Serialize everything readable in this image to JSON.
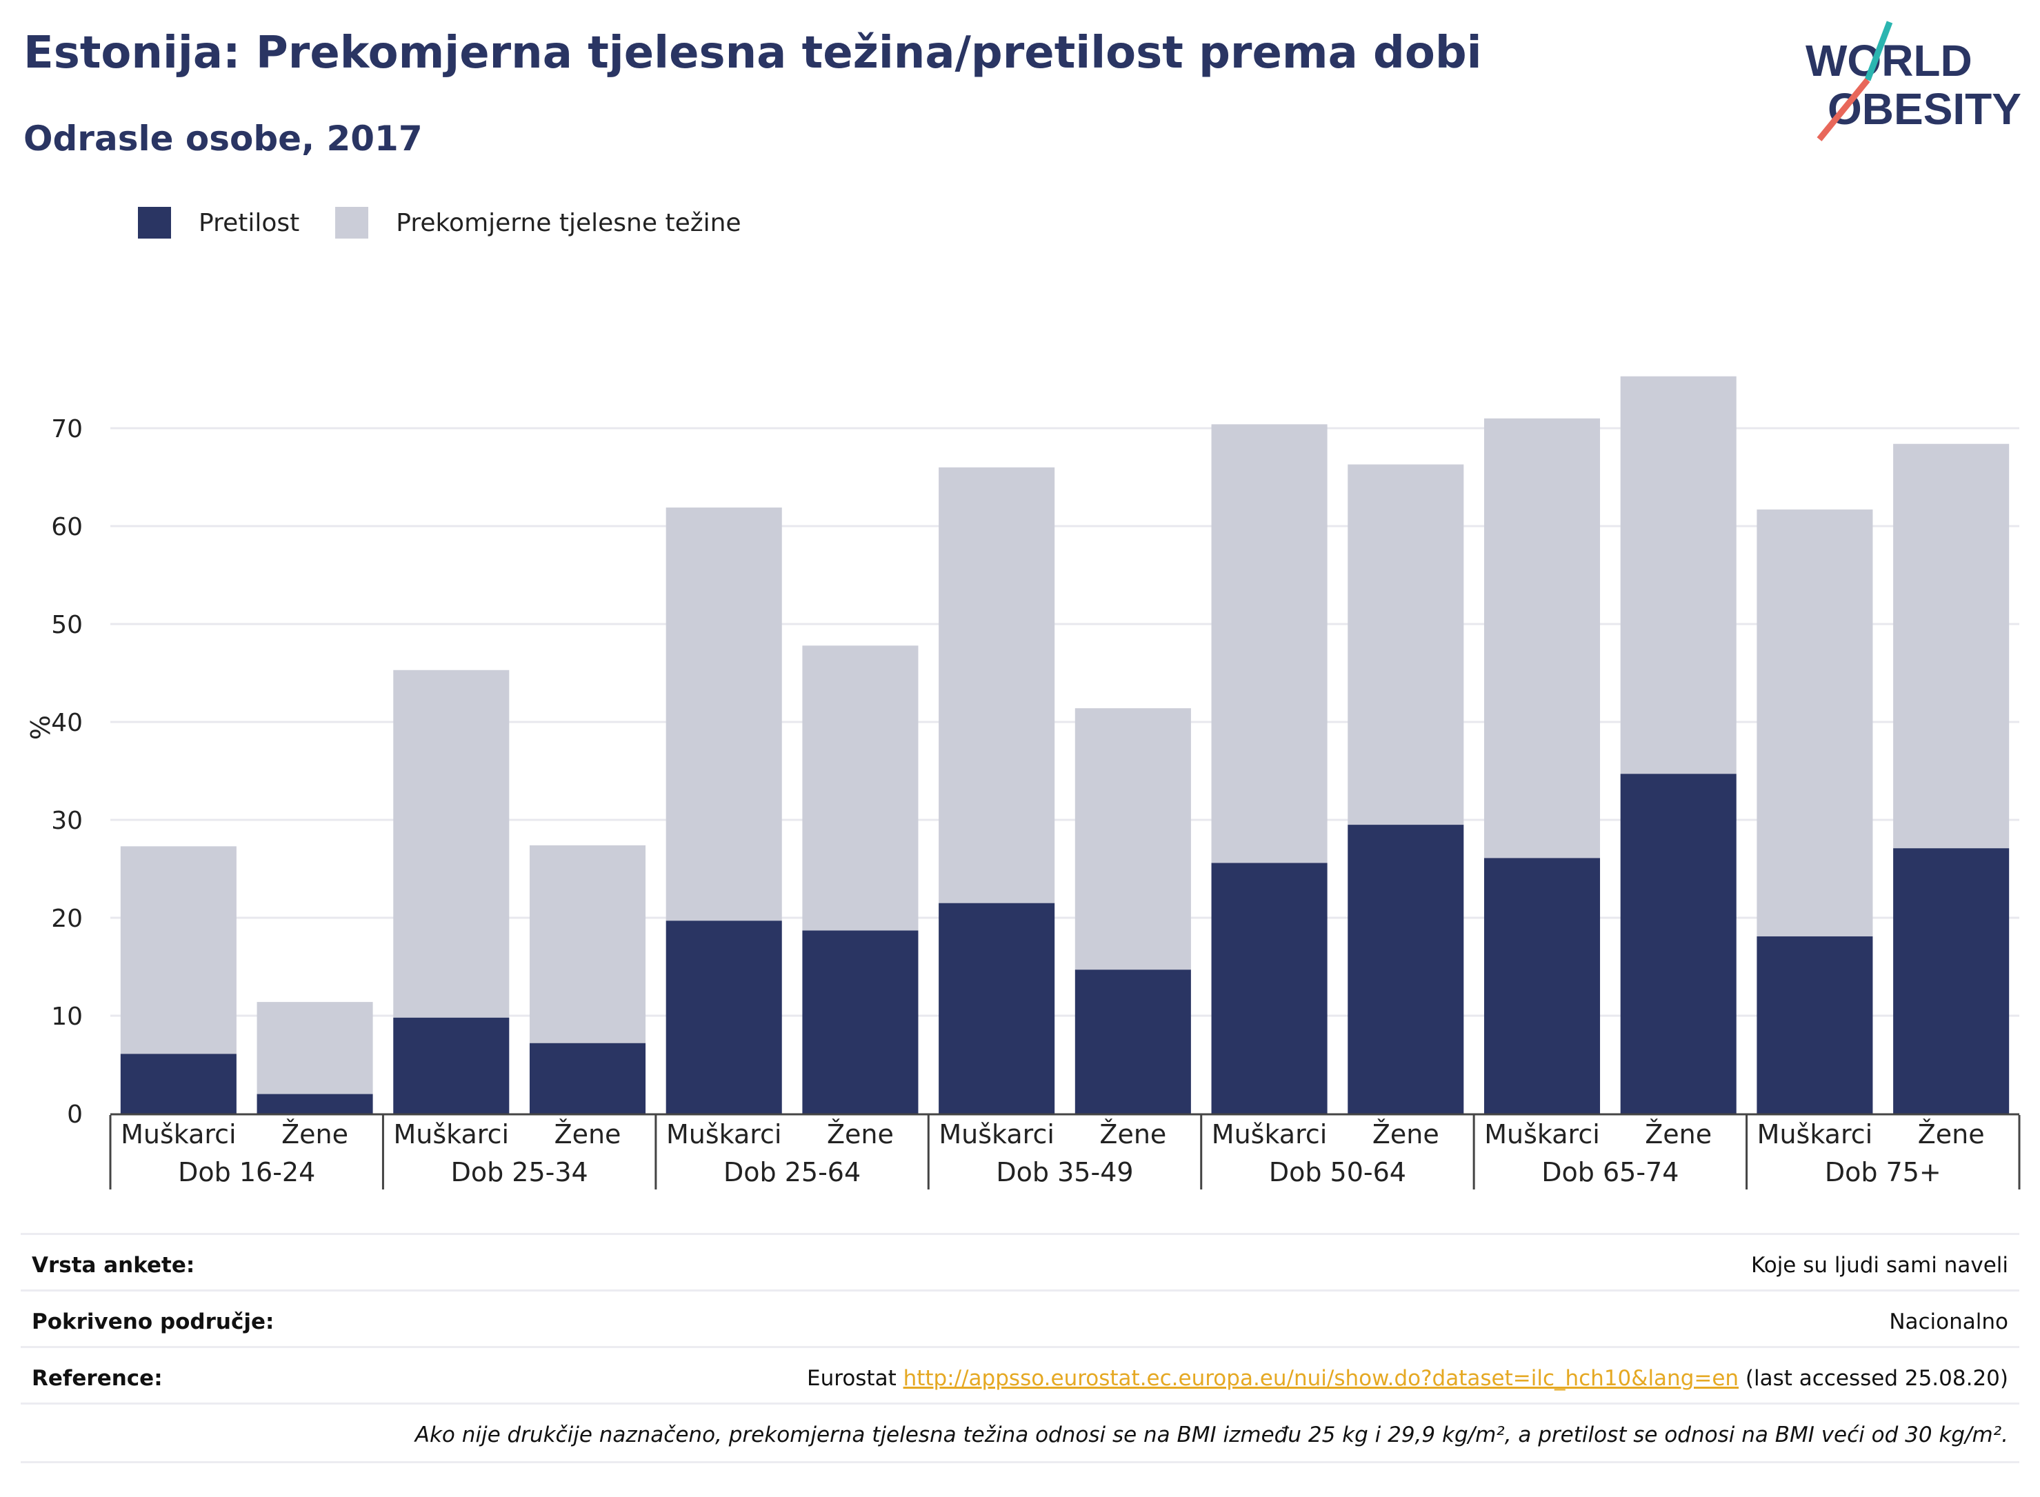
{
  "title": "Estonija: Prekomjerna tjelesna težina/pretilost prema dobi",
  "subtitle": "Odrasle osobe, 2017",
  "logo": {
    "line1": "WORLD",
    "line2": "OBESITY"
  },
  "colors": {
    "obese": "#2a3563",
    "overweight": "#cbcdd8",
    "accent_teal": "#2bb5b0",
    "accent_red": "#e8675a",
    "link": "#e5a822"
  },
  "legend": [
    {
      "label": "Pretilost",
      "color": "#2a3563"
    },
    {
      "label": "Prekomjerne tjelesne težine",
      "color": "#cbcdd8"
    }
  ],
  "chart_data": {
    "type": "bar",
    "stacked": true,
    "ylabel": "%",
    "ylim": [
      0,
      80
    ],
    "yticks": [
      0,
      10,
      20,
      30,
      40,
      50,
      60,
      70
    ],
    "grid": true,
    "legend_position": "top-left",
    "groups": [
      "Dob 16-24",
      "Dob 25-34",
      "Dob 25-64",
      "Dob 35-49",
      "Dob 50-64",
      "Dob 65-74",
      "Dob 75+"
    ],
    "subcategories": [
      "Muškarci",
      "Žene"
    ],
    "categories": [
      "Muškarci",
      "Žene",
      "Muškarci",
      "Žene",
      "Muškarci",
      "Žene",
      "Muškarci",
      "Žene",
      "Muškarci",
      "Žene",
      "Muškarci",
      "Žene",
      "Muškarci",
      "Žene"
    ],
    "series": [
      {
        "name": "Pretilost",
        "values": [
          6.1,
          2.0,
          9.8,
          7.2,
          19.7,
          18.7,
          21.5,
          14.7,
          25.6,
          29.5,
          26.1,
          34.7,
          18.1,
          27.1
        ]
      },
      {
        "name": "Prekomjerne tjelesne težine",
        "values": [
          21.2,
          9.4,
          35.5,
          20.2,
          42.2,
          29.1,
          44.5,
          26.7,
          44.8,
          36.8,
          44.9,
          40.6,
          43.6,
          41.3
        ]
      }
    ]
  },
  "footer": {
    "survey_label": "Vrsta ankete:",
    "survey_value": "Koje su ljudi sami naveli",
    "area_label": "Pokriveno područje:",
    "area_value": "Nacionalno",
    "reference_label": "Reference:",
    "reference_prefix": "Eurostat ",
    "reference_link": "http://appsso.eurostat.ec.europa.eu/nui/show.do?dataset=ilc_hch10&lang=en",
    "reference_suffix": " (last accessed 25.08.20)",
    "note": "Ako nije drukčije naznačeno, prekomjerna tjelesna težina odnosi se na BMI između 25 kg i 29,9 kg/m², a pretilost se odnosi na BMI veći od 30 kg/m²."
  }
}
